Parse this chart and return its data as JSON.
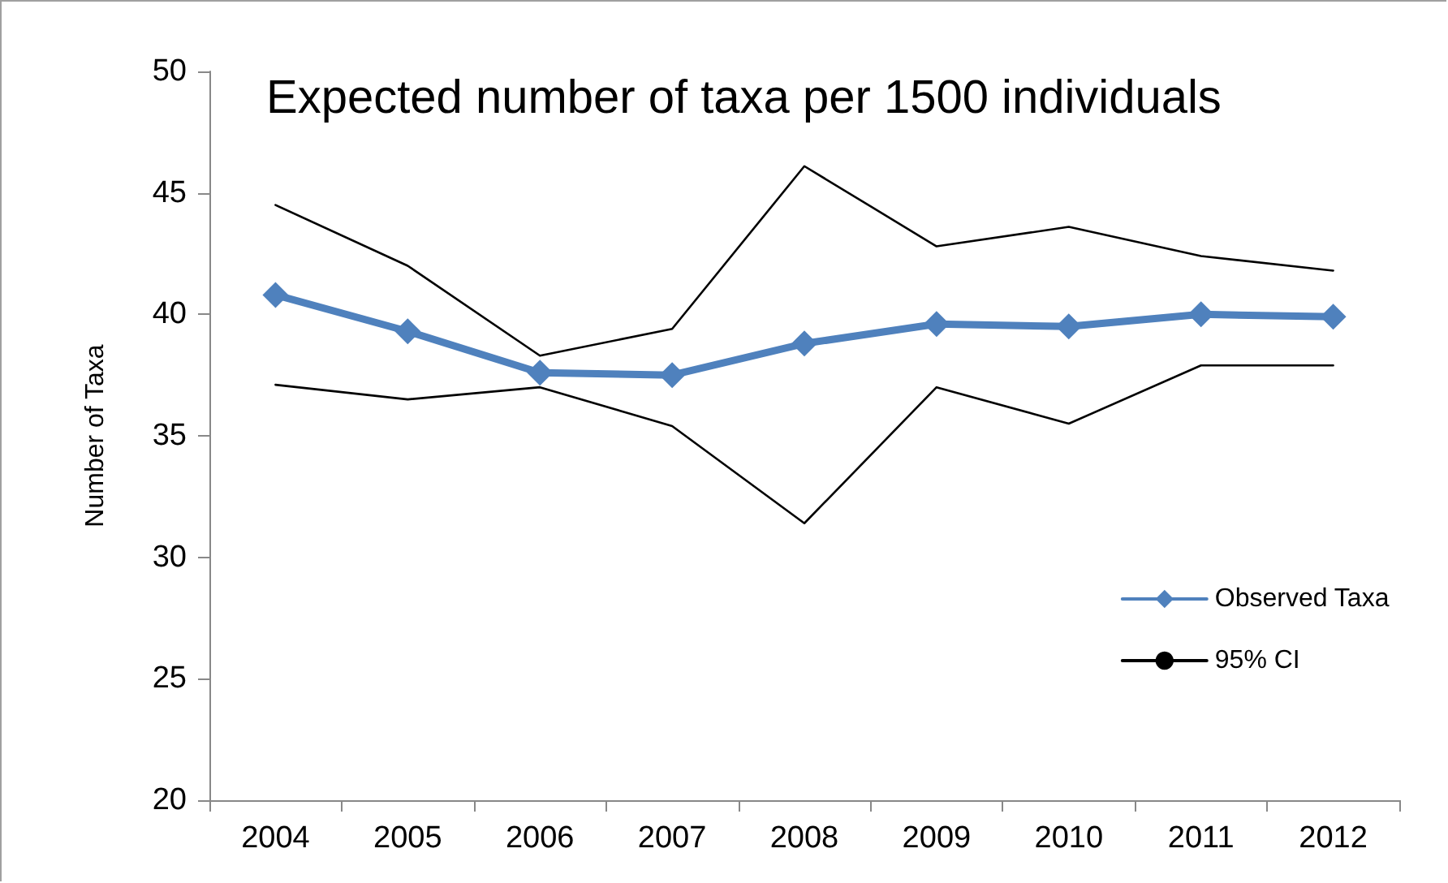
{
  "chart_data": {
    "type": "line",
    "title": "Expected number of taxa per 1500 individuals",
    "ylabel": "Number of Taxa",
    "categories": [
      "2004",
      "2005",
      "2006",
      "2007",
      "2008",
      "2009",
      "2010",
      "2011",
      "2012"
    ],
    "series": [
      {
        "name": "Observed Taxa",
        "color": "#4f81bd",
        "marker": "diamond",
        "values": [
          40.8,
          39.3,
          37.6,
          37.5,
          38.8,
          39.6,
          39.5,
          40.0,
          39.9
        ]
      },
      {
        "name": "95% CI",
        "color": "#000000",
        "marker": "none",
        "values": [
          44.5,
          42.0,
          38.3,
          39.4,
          46.1,
          42.8,
          43.6,
          42.4,
          41.8
        ]
      },
      {
        "color": "#000000",
        "marker": "none",
        "values": [
          37.1,
          36.5,
          37.0,
          35.4,
          31.4,
          37.0,
          35.5,
          37.9,
          37.9
        ]
      }
    ],
    "ylim": [
      20,
      50
    ],
    "yticks": [
      20,
      25,
      30,
      35,
      40,
      45,
      50
    ],
    "grid": false,
    "legend": "right",
    "line_style": "solid"
  }
}
